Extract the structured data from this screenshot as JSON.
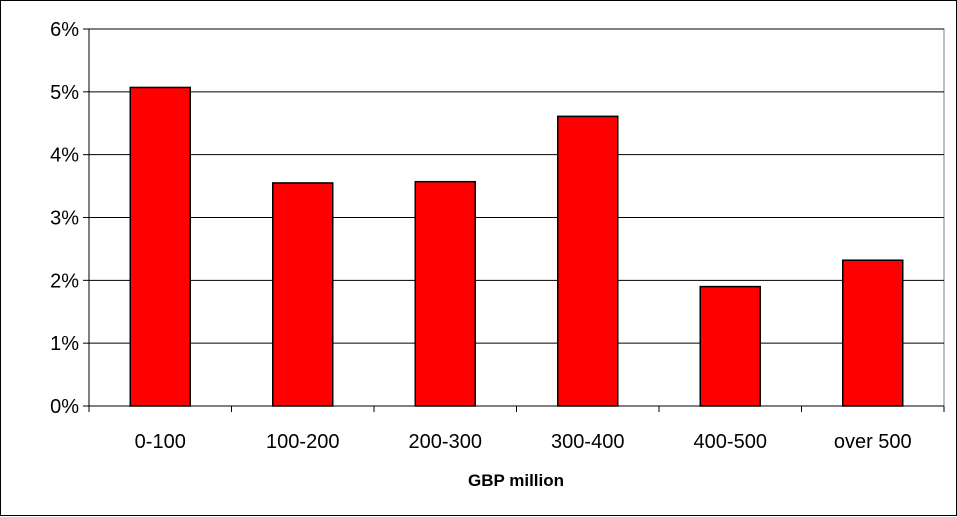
{
  "chart_data": {
    "type": "bar",
    "title": "",
    "xlabel": "GBP million",
    "ylabel": "",
    "categories": [
      "0-100",
      "100-200",
      "200-300",
      "300-400",
      "400-500",
      "over 500"
    ],
    "values": [
      5.07,
      3.55,
      3.57,
      4.61,
      1.9,
      2.32
    ],
    "value_unit": "%",
    "ylim": [
      0,
      6
    ],
    "yticks": [
      0,
      1,
      2,
      3,
      4,
      5,
      6
    ],
    "ytick_labels": [
      "0%",
      "1%",
      "2%",
      "3%",
      "4%",
      "5%",
      "6%"
    ],
    "grid": true,
    "legend": "none",
    "bar_color": "#ff0000",
    "bar_edge_color": "#000000",
    "plot_background": "#ffffff"
  }
}
